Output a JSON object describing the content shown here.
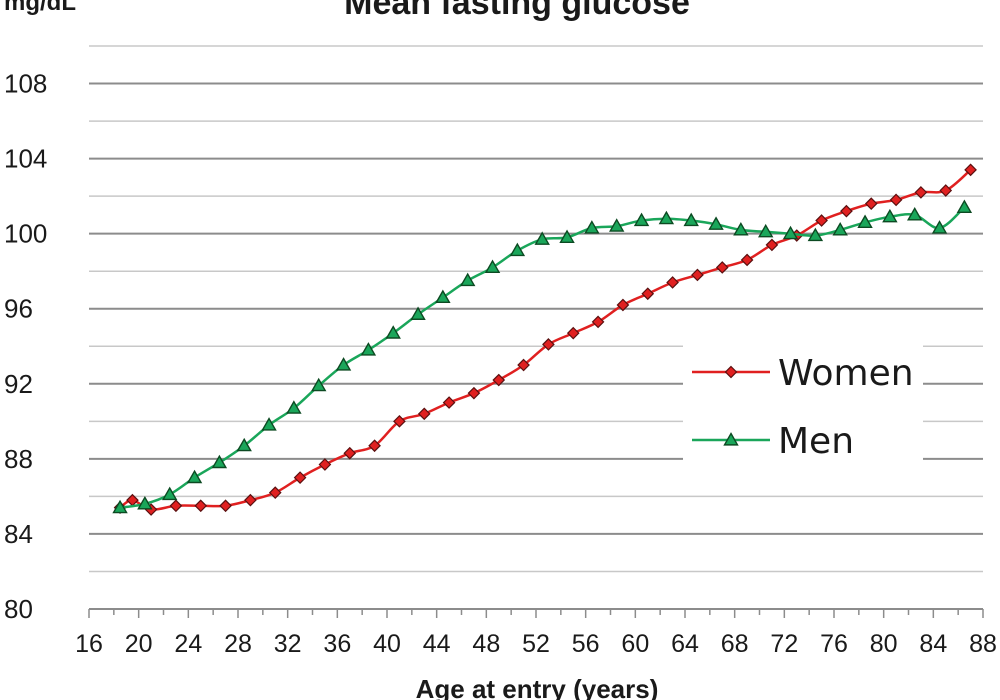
{
  "chart_data": {
    "type": "line",
    "title": "Mean fasting glucose",
    "ylabel": "mg/dL",
    "xlabel": "Age at entry (years)",
    "ylim": [
      80,
      110
    ],
    "xlim": [
      16,
      88
    ],
    "yticks": [
      80,
      84,
      88,
      92,
      96,
      100,
      104,
      108
    ],
    "xticks": [
      16,
      20,
      24,
      28,
      32,
      36,
      40,
      44,
      48,
      52,
      56,
      60,
      64,
      68,
      72,
      76,
      80,
      84,
      88
    ],
    "grid": "horizontal",
    "legend": "middle-right",
    "series": [
      {
        "name": "Women",
        "color": "#e02020",
        "marker": "diamond",
        "x": [
          18.5,
          19.5,
          21,
          23,
          25,
          27,
          29,
          31,
          33,
          35,
          37,
          39,
          41,
          43,
          45,
          47,
          49,
          51,
          53,
          55,
          57,
          59,
          61,
          63,
          65,
          67,
          69,
          71,
          73,
          75,
          77,
          79,
          81,
          83,
          85,
          87
        ],
        "values": [
          85.4,
          85.8,
          85.3,
          85.5,
          85.5,
          85.5,
          85.8,
          86.2,
          87.0,
          87.7,
          88.3,
          88.7,
          90.0,
          90.4,
          91.0,
          91.5,
          92.2,
          93.0,
          94.1,
          94.7,
          95.3,
          96.2,
          96.8,
          97.4,
          97.8,
          98.2,
          98.6,
          99.4,
          99.9,
          100.7,
          101.2,
          101.6,
          101.8,
          102.2,
          102.3,
          103.4
        ]
      },
      {
        "name": "Men",
        "color": "#1aa65a",
        "marker": "triangle",
        "x": [
          18.5,
          20.5,
          22.5,
          24.5,
          26.5,
          28.5,
          30.5,
          32.5,
          34.5,
          36.5,
          38.5,
          40.5,
          42.5,
          44.5,
          46.5,
          48.5,
          50.5,
          52.5,
          54.5,
          56.5,
          58.5,
          60.5,
          62.5,
          64.5,
          66.5,
          68.5,
          70.5,
          72.5,
          74.5,
          76.5,
          78.5,
          80.5,
          82.5,
          84.5,
          86.5
        ],
        "values": [
          85.4,
          85.6,
          86.1,
          87.0,
          87.8,
          88.7,
          89.8,
          90.7,
          91.9,
          93.0,
          93.8,
          94.7,
          95.7,
          96.6,
          97.5,
          98.2,
          99.1,
          99.7,
          99.8,
          100.3,
          100.4,
          100.7,
          100.8,
          100.7,
          100.5,
          100.2,
          100.1,
          100.0,
          99.9,
          100.2,
          100.6,
          100.9,
          101.0,
          100.3,
          101.4
        ]
      }
    ]
  }
}
